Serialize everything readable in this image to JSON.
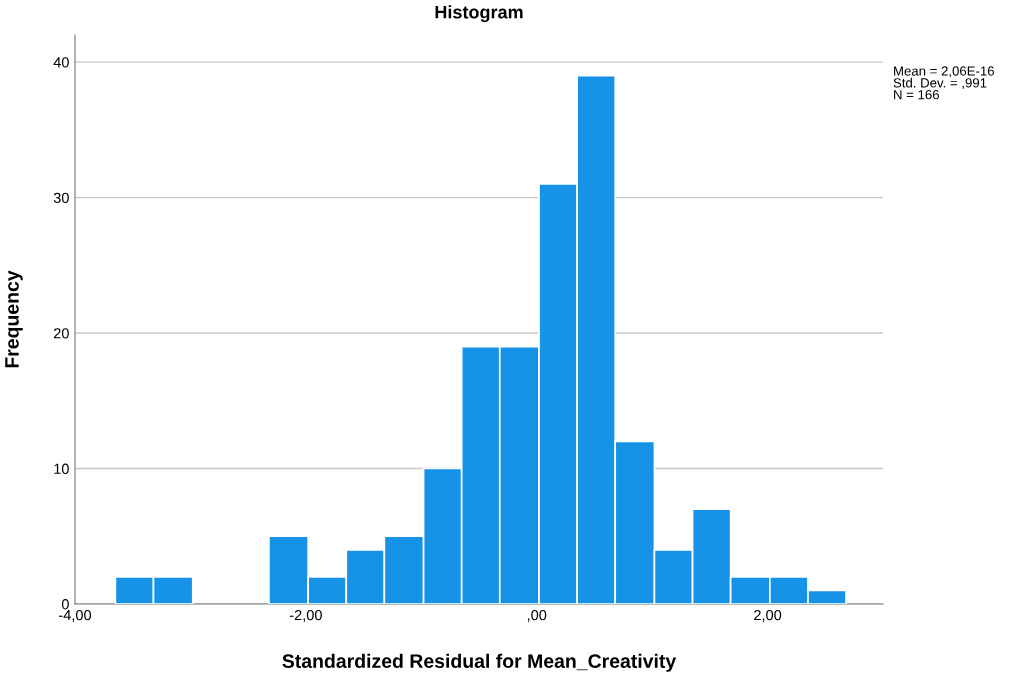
{
  "chart_data": {
    "type": "histogram",
    "title": "Histogram",
    "xlabel": "Standardized Residual for Mean_Creativity",
    "ylabel": "Frequency",
    "bins": [
      -3.65,
      -3.32,
      -2.98,
      -2.32,
      -1.98,
      -1.65,
      -1.32,
      -0.98,
      -0.65,
      -0.32,
      0.02,
      0.35,
      0.68,
      1.02,
      1.35,
      1.68,
      2.02,
      2.35,
      2.68
    ],
    "values": [
      2,
      2,
      0,
      5,
      2,
      4,
      5,
      10,
      19,
      19,
      31,
      39,
      12,
      4,
      7,
      2,
      2,
      1
    ],
    "color": "#1692e6",
    "xlim": [
      -4.0,
      3.0
    ],
    "xticks": [
      {
        "value": -4,
        "label": "-4,00"
      },
      {
        "value": -2,
        "label": "-2,00"
      },
      {
        "value": 0,
        "label": ",00"
      },
      {
        "value": 2,
        "label": "2,00"
      }
    ],
    "ylim": [
      0,
      42
    ],
    "yticks": [
      0,
      10,
      20,
      30,
      40
    ],
    "grid": "y",
    "annotations": [
      "Mean = 2,06E-16\nStd. Dev. = ,991\nN = 166"
    ]
  }
}
